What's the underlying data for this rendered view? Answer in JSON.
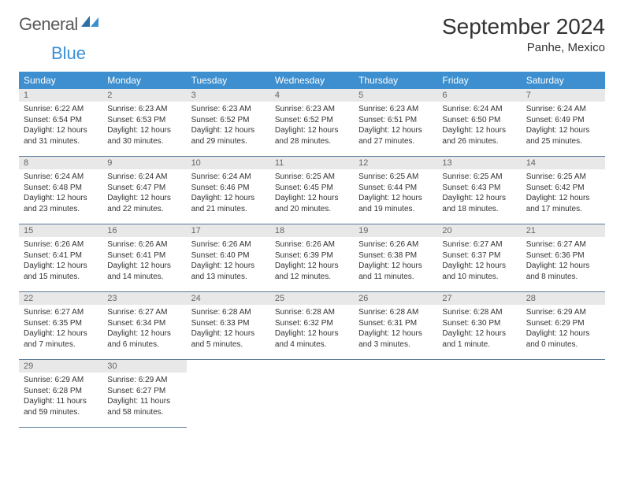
{
  "logo": {
    "general": "General",
    "blue": "Blue"
  },
  "title": "September 2024",
  "location": "Panhe, Mexico",
  "colors": {
    "header_bg": "#3d8fcf",
    "header_text": "#ffffff",
    "daynum_bg": "#e8e8e8",
    "daynum_text": "#666666",
    "cell_border": "#5b7a99",
    "body_text": "#333333",
    "logo_gray": "#5a5a5a",
    "logo_blue": "#3a8fcf"
  },
  "weekdays": [
    "Sunday",
    "Monday",
    "Tuesday",
    "Wednesday",
    "Thursday",
    "Friday",
    "Saturday"
  ],
  "weeks": [
    [
      {
        "n": "1",
        "sunrise": "Sunrise: 6:22 AM",
        "sunset": "Sunset: 6:54 PM",
        "dl1": "Daylight: 12 hours",
        "dl2": "and 31 minutes."
      },
      {
        "n": "2",
        "sunrise": "Sunrise: 6:23 AM",
        "sunset": "Sunset: 6:53 PM",
        "dl1": "Daylight: 12 hours",
        "dl2": "and 30 minutes."
      },
      {
        "n": "3",
        "sunrise": "Sunrise: 6:23 AM",
        "sunset": "Sunset: 6:52 PM",
        "dl1": "Daylight: 12 hours",
        "dl2": "and 29 minutes."
      },
      {
        "n": "4",
        "sunrise": "Sunrise: 6:23 AM",
        "sunset": "Sunset: 6:52 PM",
        "dl1": "Daylight: 12 hours",
        "dl2": "and 28 minutes."
      },
      {
        "n": "5",
        "sunrise": "Sunrise: 6:23 AM",
        "sunset": "Sunset: 6:51 PM",
        "dl1": "Daylight: 12 hours",
        "dl2": "and 27 minutes."
      },
      {
        "n": "6",
        "sunrise": "Sunrise: 6:24 AM",
        "sunset": "Sunset: 6:50 PM",
        "dl1": "Daylight: 12 hours",
        "dl2": "and 26 minutes."
      },
      {
        "n": "7",
        "sunrise": "Sunrise: 6:24 AM",
        "sunset": "Sunset: 6:49 PM",
        "dl1": "Daylight: 12 hours",
        "dl2": "and 25 minutes."
      }
    ],
    [
      {
        "n": "8",
        "sunrise": "Sunrise: 6:24 AM",
        "sunset": "Sunset: 6:48 PM",
        "dl1": "Daylight: 12 hours",
        "dl2": "and 23 minutes."
      },
      {
        "n": "9",
        "sunrise": "Sunrise: 6:24 AM",
        "sunset": "Sunset: 6:47 PM",
        "dl1": "Daylight: 12 hours",
        "dl2": "and 22 minutes."
      },
      {
        "n": "10",
        "sunrise": "Sunrise: 6:24 AM",
        "sunset": "Sunset: 6:46 PM",
        "dl1": "Daylight: 12 hours",
        "dl2": "and 21 minutes."
      },
      {
        "n": "11",
        "sunrise": "Sunrise: 6:25 AM",
        "sunset": "Sunset: 6:45 PM",
        "dl1": "Daylight: 12 hours",
        "dl2": "and 20 minutes."
      },
      {
        "n": "12",
        "sunrise": "Sunrise: 6:25 AM",
        "sunset": "Sunset: 6:44 PM",
        "dl1": "Daylight: 12 hours",
        "dl2": "and 19 minutes."
      },
      {
        "n": "13",
        "sunrise": "Sunrise: 6:25 AM",
        "sunset": "Sunset: 6:43 PM",
        "dl1": "Daylight: 12 hours",
        "dl2": "and 18 minutes."
      },
      {
        "n": "14",
        "sunrise": "Sunrise: 6:25 AM",
        "sunset": "Sunset: 6:42 PM",
        "dl1": "Daylight: 12 hours",
        "dl2": "and 17 minutes."
      }
    ],
    [
      {
        "n": "15",
        "sunrise": "Sunrise: 6:26 AM",
        "sunset": "Sunset: 6:41 PM",
        "dl1": "Daylight: 12 hours",
        "dl2": "and 15 minutes."
      },
      {
        "n": "16",
        "sunrise": "Sunrise: 6:26 AM",
        "sunset": "Sunset: 6:41 PM",
        "dl1": "Daylight: 12 hours",
        "dl2": "and 14 minutes."
      },
      {
        "n": "17",
        "sunrise": "Sunrise: 6:26 AM",
        "sunset": "Sunset: 6:40 PM",
        "dl1": "Daylight: 12 hours",
        "dl2": "and 13 minutes."
      },
      {
        "n": "18",
        "sunrise": "Sunrise: 6:26 AM",
        "sunset": "Sunset: 6:39 PM",
        "dl1": "Daylight: 12 hours",
        "dl2": "and 12 minutes."
      },
      {
        "n": "19",
        "sunrise": "Sunrise: 6:26 AM",
        "sunset": "Sunset: 6:38 PM",
        "dl1": "Daylight: 12 hours",
        "dl2": "and 11 minutes."
      },
      {
        "n": "20",
        "sunrise": "Sunrise: 6:27 AM",
        "sunset": "Sunset: 6:37 PM",
        "dl1": "Daylight: 12 hours",
        "dl2": "and 10 minutes."
      },
      {
        "n": "21",
        "sunrise": "Sunrise: 6:27 AM",
        "sunset": "Sunset: 6:36 PM",
        "dl1": "Daylight: 12 hours",
        "dl2": "and 8 minutes."
      }
    ],
    [
      {
        "n": "22",
        "sunrise": "Sunrise: 6:27 AM",
        "sunset": "Sunset: 6:35 PM",
        "dl1": "Daylight: 12 hours",
        "dl2": "and 7 minutes."
      },
      {
        "n": "23",
        "sunrise": "Sunrise: 6:27 AM",
        "sunset": "Sunset: 6:34 PM",
        "dl1": "Daylight: 12 hours",
        "dl2": "and 6 minutes."
      },
      {
        "n": "24",
        "sunrise": "Sunrise: 6:28 AM",
        "sunset": "Sunset: 6:33 PM",
        "dl1": "Daylight: 12 hours",
        "dl2": "and 5 minutes."
      },
      {
        "n": "25",
        "sunrise": "Sunrise: 6:28 AM",
        "sunset": "Sunset: 6:32 PM",
        "dl1": "Daylight: 12 hours",
        "dl2": "and 4 minutes."
      },
      {
        "n": "26",
        "sunrise": "Sunrise: 6:28 AM",
        "sunset": "Sunset: 6:31 PM",
        "dl1": "Daylight: 12 hours",
        "dl2": "and 3 minutes."
      },
      {
        "n": "27",
        "sunrise": "Sunrise: 6:28 AM",
        "sunset": "Sunset: 6:30 PM",
        "dl1": "Daylight: 12 hours",
        "dl2": "and 1 minute."
      },
      {
        "n": "28",
        "sunrise": "Sunrise: 6:29 AM",
        "sunset": "Sunset: 6:29 PM",
        "dl1": "Daylight: 12 hours",
        "dl2": "and 0 minutes."
      }
    ],
    [
      {
        "n": "29",
        "sunrise": "Sunrise: 6:29 AM",
        "sunset": "Sunset: 6:28 PM",
        "dl1": "Daylight: 11 hours",
        "dl2": "and 59 minutes."
      },
      {
        "n": "30",
        "sunrise": "Sunrise: 6:29 AM",
        "sunset": "Sunset: 6:27 PM",
        "dl1": "Daylight: 11 hours",
        "dl2": "and 58 minutes."
      },
      null,
      null,
      null,
      null,
      null
    ]
  ]
}
